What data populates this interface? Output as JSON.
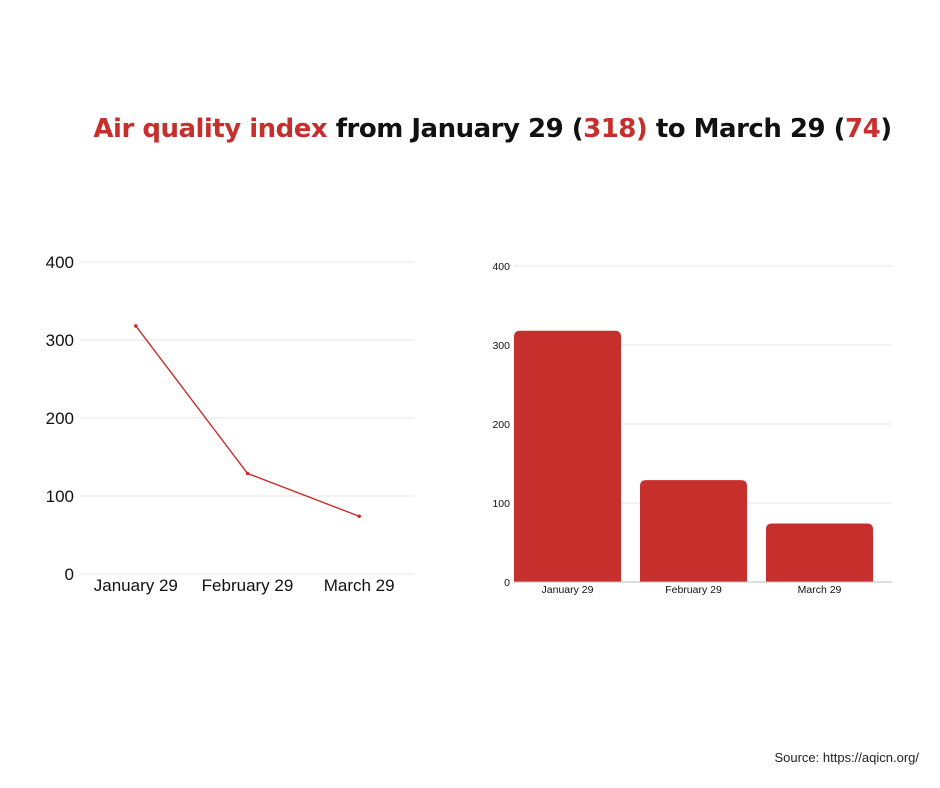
{
  "title": {
    "part1": "Air quality index",
    "part2": " from January 29 (",
    "part3": "318)",
    "part4": " to March 29 (",
    "part5": "74",
    "part6": ")"
  },
  "source": "Source: https://aqicn.org/",
  "colors": {
    "accent": "#c62f2b",
    "grid": "#e6e6e6",
    "text": "#111111"
  },
  "chart_data": [
    {
      "type": "line",
      "categories": [
        "January 29",
        "February 29",
        "March 29"
      ],
      "series": [
        {
          "values": [
            318,
            129,
            74
          ]
        }
      ],
      "ylim": [
        0,
        400
      ],
      "yticks": [
        0,
        100,
        200,
        300,
        400
      ],
      "grid": true,
      "legend": "none"
    },
    {
      "type": "bar",
      "categories": [
        "January 29",
        "February 29",
        "March 29"
      ],
      "values": [
        318,
        129,
        74
      ],
      "ylim": [
        0,
        400
      ],
      "yticks": [
        0,
        100,
        200,
        300,
        400
      ],
      "grid": true,
      "legend": "none"
    }
  ]
}
